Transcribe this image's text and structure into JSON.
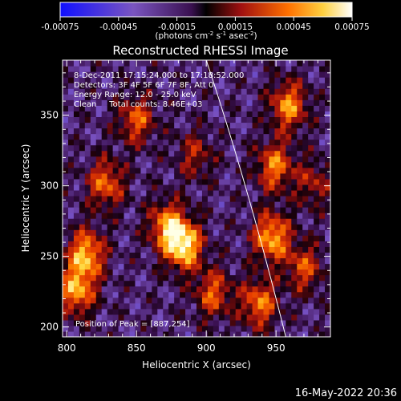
{
  "chart_data": [
    {
      "type": "colorbar",
      "ticks": [
        "-0.00075",
        "-0.00045",
        "-0.00015",
        "0.00015",
        "0.00045",
        "0.00075"
      ],
      "range": [
        -0.00075,
        0.00075
      ],
      "unit_label": "(photons cm",
      "unit_sup1": "-2",
      "unit_mid1": " s",
      "unit_sup2": "-1",
      "unit_mid2": " asec",
      "unit_sup3": "-2",
      "unit_end": ")"
    },
    {
      "type": "heatmap",
      "title": "Reconstructed RHESSI Image",
      "xlabel": "Heliocentric X (arcsec)",
      "ylabel": "Heliocentric Y (arcsec)",
      "xlim": [
        797,
        989
      ],
      "ylim": [
        193,
        389
      ],
      "x_ticks": [
        800,
        850,
        900,
        950
      ],
      "y_ticks": [
        200,
        250,
        300,
        350
      ],
      "annotations": [
        "8-Dec-2011 17:15:24.000 to 17:18:52.000",
        "Detectors: 3F 4F 5F 6F 7F 8F, Att 0",
        "Energy Range: 12.0 - 25.0 keV",
        "Clean     Total counts: 8.46E+03"
      ],
      "peak_label": "Position of Peak = [887,254]",
      "peak": [
        887,
        254
      ],
      "limb_curve": [
        [
          900,
          389
        ],
        [
          930,
          300
        ],
        [
          957,
          193
        ]
      ],
      "sources": [
        {
          "x": 882,
          "y": 256,
          "intensity": 1.0
        },
        {
          "x": 870,
          "y": 270,
          "intensity": 0.75
        },
        {
          "x": 812,
          "y": 250,
          "intensity": 0.85
        },
        {
          "x": 805,
          "y": 224,
          "intensity": 0.8
        },
        {
          "x": 826,
          "y": 300,
          "intensity": 0.65
        },
        {
          "x": 848,
          "y": 345,
          "intensity": 0.6
        },
        {
          "x": 903,
          "y": 222,
          "intensity": 0.6
        },
        {
          "x": 957,
          "y": 355,
          "intensity": 0.75
        },
        {
          "x": 947,
          "y": 312,
          "intensity": 0.7
        },
        {
          "x": 945,
          "y": 262,
          "intensity": 0.85
        },
        {
          "x": 936,
          "y": 215,
          "intensity": 0.7
        },
        {
          "x": 968,
          "y": 240,
          "intensity": 0.55
        },
        {
          "x": 890,
          "y": 320,
          "intensity": 0.4
        },
        {
          "x": 975,
          "y": 300,
          "intensity": 0.4
        }
      ]
    }
  ],
  "footer": {
    "timestamp": "16-May-2022 20:36"
  }
}
